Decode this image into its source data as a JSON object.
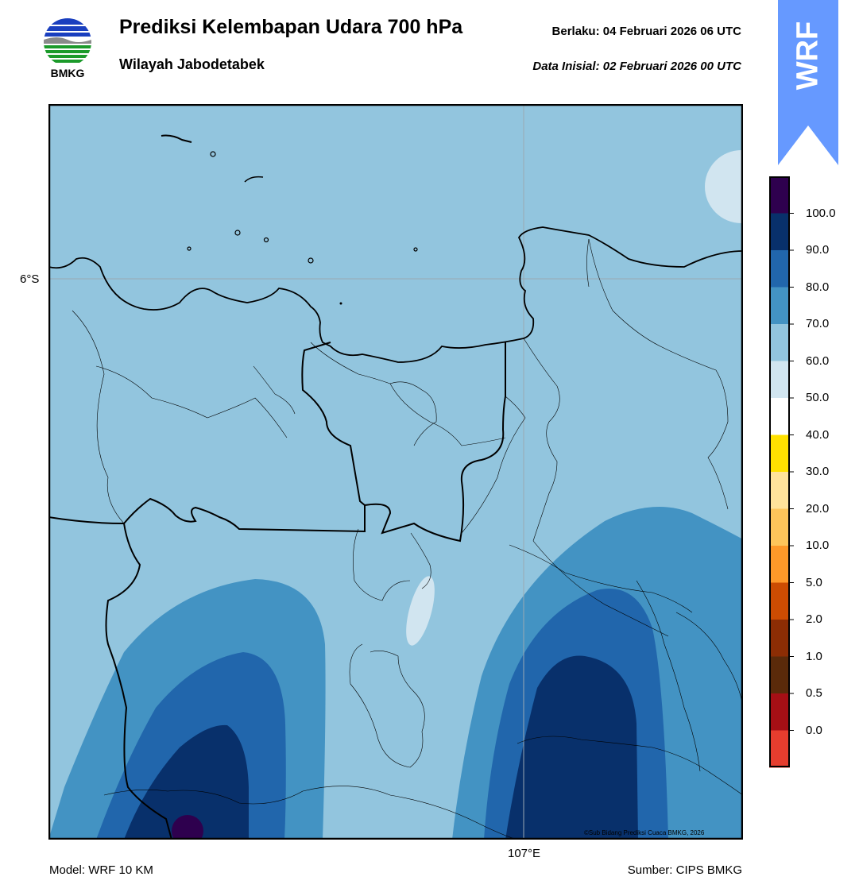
{
  "header": {
    "title": "Prediksi Kelembapan Udara 700 hPa",
    "subtitle": "Wilayah Jabodetabek",
    "valid_time": "Berlaku:  04 Februari 2026 06 UTC",
    "init_time": "Data Inisial:  02 Februari 2026 00 UTC",
    "logo_text": "BMKG",
    "banner_text": "WRF"
  },
  "map": {
    "lat_label": "6°S",
    "lon_label": "107°E",
    "copyright": "©Sub Bidang Prediksi Cuaca BMKG, 2026"
  },
  "footer": {
    "model": "Model: WRF 10 KM",
    "source": "Sumber: CIPS BMKG"
  },
  "colorbar": {
    "labels": [
      "100.0",
      "90.0",
      "80.0",
      "70.0",
      "60.0",
      "50.0",
      "40.0",
      "30.0",
      "20.0",
      "10.0",
      "5.0",
      "2.0",
      "1.0",
      "0.5",
      "0.0"
    ],
    "colors": [
      "#2e004e",
      "#08306b",
      "#2166ac",
      "#4393c3",
      "#92c5de",
      "#d1e5f0",
      "#ffffff",
      "#ffe100",
      "#ffe39b",
      "#fec55a",
      "#fe9929",
      "#cc4c02",
      "#8c2d04",
      "#5a2a0a",
      "#a50f15",
      "#e63d2e"
    ]
  },
  "colors": {
    "band_60_70": "#92c5de",
    "band_50_60": "#d1e5f0",
    "band_70_80": "#4393c3",
    "band_80_90": "#2166ac",
    "band_90_100": "#08306b",
    "band_100": "#2e004e",
    "wrf_banner": "#6699ff"
  }
}
